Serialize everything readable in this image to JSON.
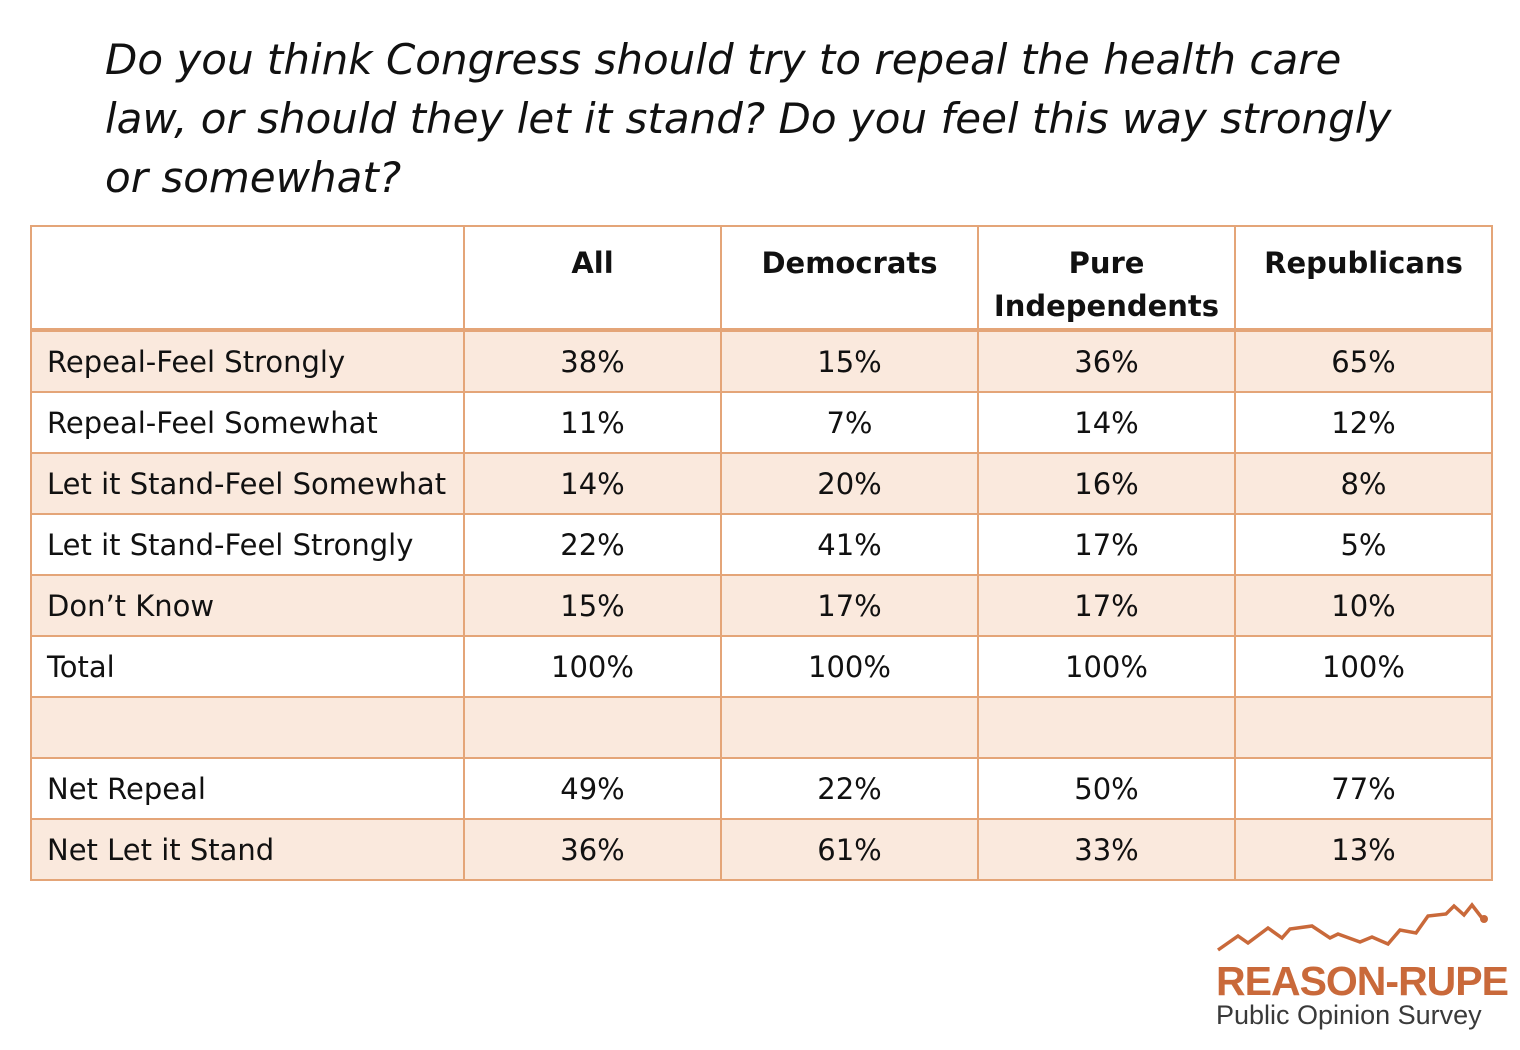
{
  "question": "Do you think Congress should try to repeal the health care law, or should they let it stand? Do you feel this way strongly or somewhat?",
  "chart_data": {
    "type": "table",
    "columns": [
      "",
      "All",
      "Democrats",
      "Pure Independents",
      "Republicans"
    ],
    "column_lines": [
      [
        "All"
      ],
      [
        "Democrats"
      ],
      [
        "Pure",
        "Independents"
      ],
      [
        "Republicans"
      ]
    ],
    "rows": [
      {
        "label": "Repeal-Feel Strongly",
        "values": [
          "38%",
          "15%",
          "36%",
          "65%"
        ]
      },
      {
        "label": "Repeal-Feel Somewhat",
        "values": [
          "11%",
          "7%",
          "14%",
          "12%"
        ]
      },
      {
        "label": "Let it Stand-Feel Somewhat",
        "values": [
          "14%",
          "20%",
          "16%",
          "8%"
        ]
      },
      {
        "label": "Let it Stand-Feel Strongly",
        "values": [
          "22%",
          "41%",
          "17%",
          "5%"
        ]
      },
      {
        "label": "Don’t Know",
        "values": [
          "15%",
          "17%",
          "17%",
          "10%"
        ]
      },
      {
        "label": "Total",
        "values": [
          "100%",
          "100%",
          "100%",
          "100%"
        ]
      },
      {
        "label": "",
        "values": [
          "",
          "",
          "",
          ""
        ]
      },
      {
        "label": "Net Repeal",
        "values": [
          "49%",
          "22%",
          "50%",
          "77%"
        ]
      },
      {
        "label": "Net Let it Stand",
        "values": [
          "36%",
          "61%",
          "33%",
          "13%"
        ]
      }
    ],
    "row_fill": [
      "#fae9dd",
      "#ffffff",
      "#fae9dd",
      "#ffffff",
      "#fae9dd",
      "#ffffff",
      "#fae9dd",
      "#ffffff",
      "#fae9dd"
    ],
    "border_color": "#e4a578"
  },
  "logo": {
    "name": "REASON-RUPE",
    "subtitle": "Public Opinion Survey",
    "mark_icon": "mountain-line-icon",
    "color": "#c9693a"
  }
}
